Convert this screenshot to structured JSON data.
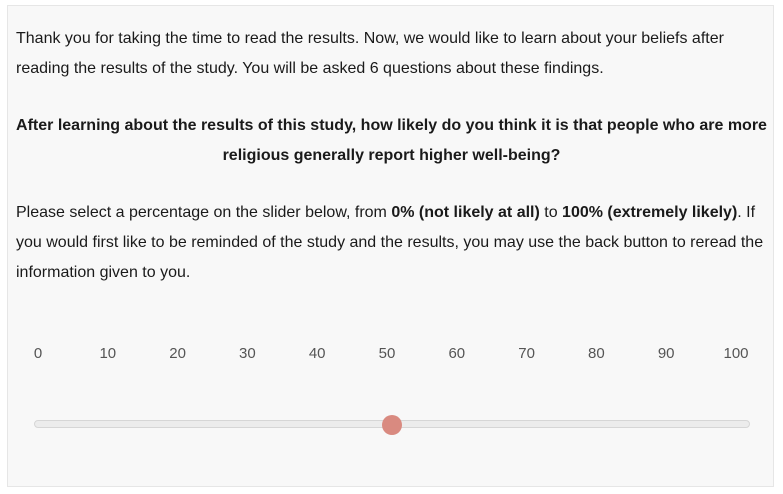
{
  "intro": {
    "text": "Thank you for taking the time to read the results. Now, we would like to learn about your beliefs after reading the results of the study. You will be asked 6 questions about these findings."
  },
  "question": {
    "text": "After learning about the results of this study, how likely do you think it is that people who are more religious generally report higher well-being?"
  },
  "instructions": {
    "part1": "Please select a percentage on the slider below, from ",
    "min_label": "0% (not likely at all)",
    "part2": " to ",
    "max_label": "100% (extremely likely)",
    "part3": ". If you would first like to be reminded of the study and the results, you may use the back button to reread the information given to you."
  },
  "slider": {
    "ticks": [
      "0",
      "10",
      "20",
      "30",
      "40",
      "50",
      "60",
      "70",
      "80",
      "90",
      "100"
    ],
    "min": 0,
    "max": 100,
    "value": 50,
    "handle_color": "#d98a80"
  }
}
